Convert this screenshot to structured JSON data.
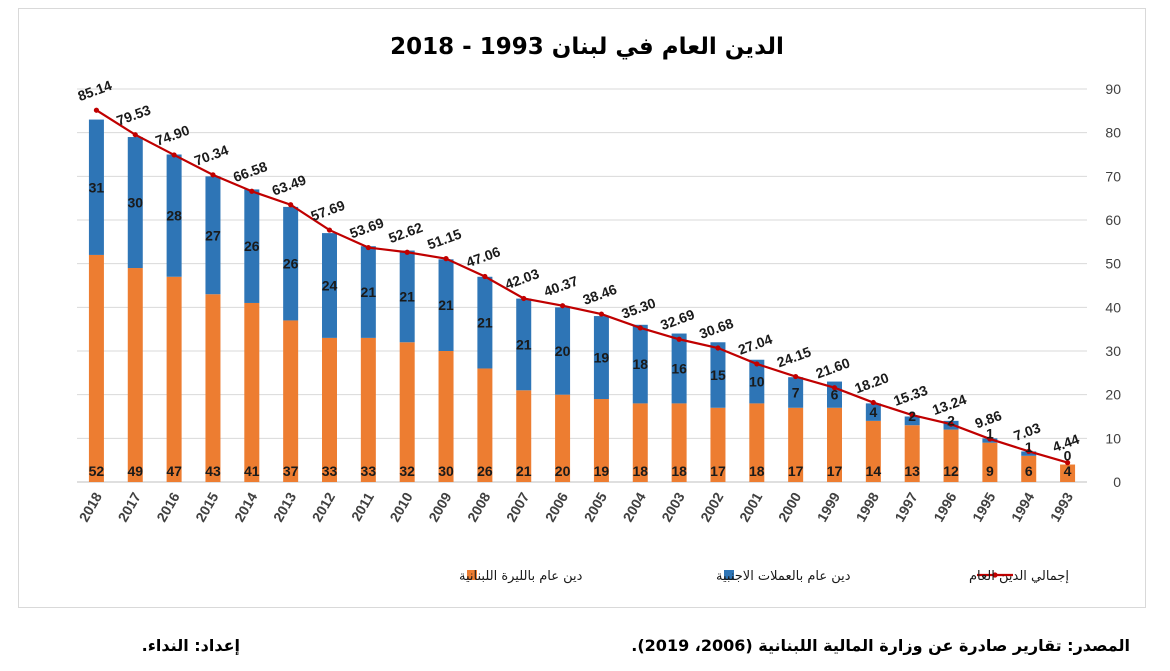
{
  "chart_data": {
    "type": "bar",
    "title": "الدين العام في لبنان 1993 - 2018",
    "categories": [
      "2018",
      "2017",
      "2016",
      "2015",
      "2014",
      "2013",
      "2012",
      "2011",
      "2010",
      "2009",
      "2008",
      "2007",
      "2006",
      "2005",
      "2004",
      "2003",
      "2002",
      "2001",
      "2000",
      "1999",
      "1998",
      "1997",
      "1996",
      "1995",
      "1994",
      "1993"
    ],
    "ylim": [
      0,
      90
    ],
    "yticks": [
      "0",
      "10",
      "20",
      "30",
      "40",
      "50",
      "60",
      "70",
      "80",
      "90"
    ],
    "y_axis_side": "right",
    "grid": true,
    "stacked": true,
    "legend_position": "bottom",
    "series": [
      {
        "name": "دين عام بالليرة اللبنانية",
        "color": "#ed7d31",
        "values": [
          52,
          49,
          47,
          43,
          41,
          37,
          33,
          33,
          32,
          30,
          26,
          21,
          20,
          19,
          18,
          18,
          17,
          18,
          17,
          17,
          14,
          13,
          12,
          9,
          6,
          4
        ],
        "labels": [
          "52",
          "49",
          "47",
          "43",
          "41",
          "37",
          "33",
          "33",
          "32",
          "30",
          "26",
          "21",
          "20",
          "19",
          "18",
          "18",
          "17",
          "18",
          "17",
          "17",
          "14",
          "13",
          "12",
          "9",
          "6",
          "4"
        ]
      },
      {
        "name": "دين عام بالعملات الاجنبية",
        "color": "#2e75b6",
        "values": [
          31,
          30,
          28,
          27,
          26,
          26,
          24,
          21,
          21,
          21,
          21,
          21,
          20,
          19,
          18,
          16,
          15,
          10,
          7,
          6,
          4,
          2,
          2,
          1,
          1,
          0
        ],
        "labels": [
          "31",
          "30",
          "28",
          "27",
          "26",
          "26",
          "24",
          "21",
          "21",
          "21",
          "21",
          "21",
          "20",
          "19",
          "18",
          "16",
          "15",
          "10",
          "7",
          "6",
          "4",
          "2",
          "2",
          "1",
          "1",
          "0"
        ]
      },
      {
        "name": "إجمالي الدين العام",
        "type": "line",
        "color": "#c00000",
        "values": [
          85.14,
          79.53,
          74.9,
          70.34,
          66.58,
          63.49,
          57.69,
          53.69,
          52.62,
          51.15,
          47.06,
          42.03,
          40.37,
          38.46,
          35.3,
          32.69,
          30.68,
          27.04,
          24.15,
          21.6,
          18.2,
          15.33,
          13.24,
          9.86,
          7.03,
          4.44
        ],
        "labels": [
          "85.14",
          "79.53",
          "74.90",
          "70.34",
          "66.58",
          "63.49",
          "57.69",
          "53.69",
          "52.62",
          "51.15",
          "47.06",
          "42.03",
          "40.37",
          "38.46",
          "35.30",
          "32.69",
          "30.68",
          "27.04",
          "24.15",
          "21.60",
          "18.20",
          "15.33",
          "13.24",
          "9.86",
          "7.03",
          "4.44"
        ]
      }
    ]
  },
  "footer": {
    "source": "المصدر: تقارير صادرة عن وزارة المالية اللبنانية (2006، 2019).",
    "prepared_by": "إعداد: النداء."
  }
}
